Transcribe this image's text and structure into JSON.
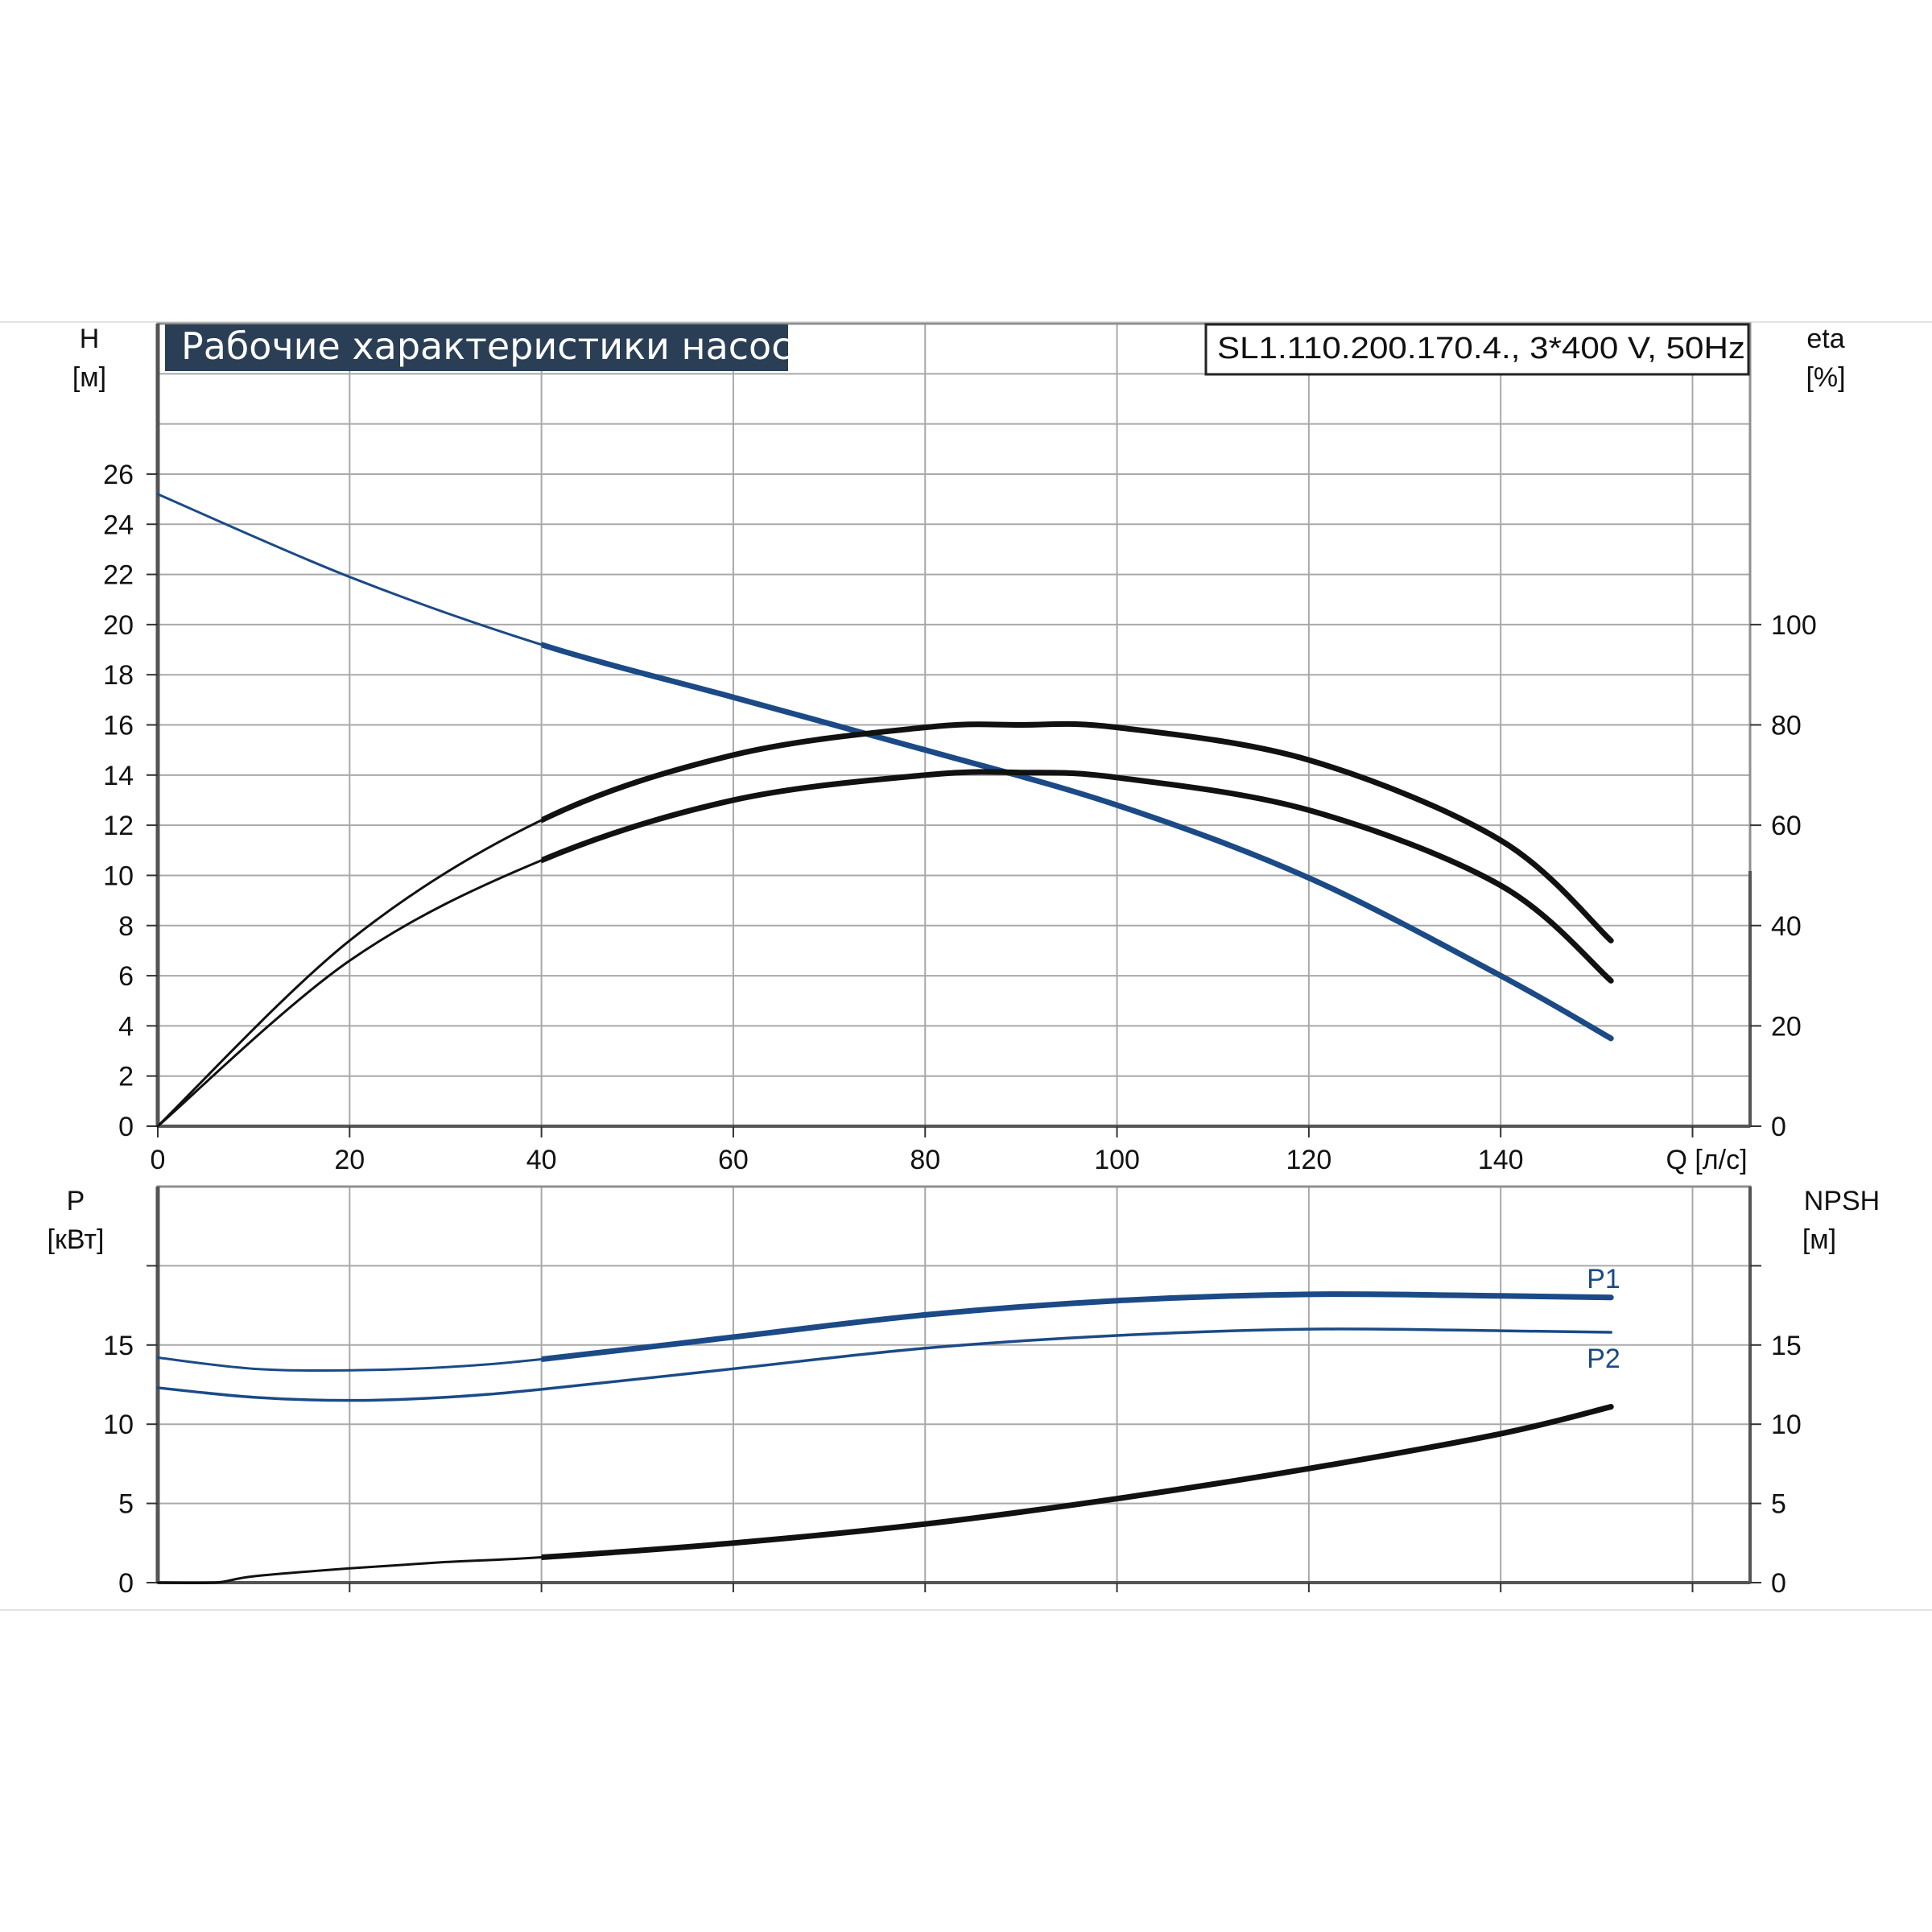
{
  "title": "Рабочие характеристики насоса",
  "model": "SL1.110.200.170.4., 3*400 V, 50Hz",
  "colors": {
    "blue": "#1b4a86",
    "black": "#111111",
    "grid": "#a9a9a9",
    "title_bg": "#2a3e55"
  },
  "chart_data": [
    {
      "type": "line",
      "x_label": "Q [л/с]",
      "left_axis": {
        "title_line1": "H",
        "title_line2": "[м]",
        "ticks": [
          "0",
          "2",
          "4",
          "6",
          "8",
          "10",
          "12",
          "14",
          "16",
          "18",
          "20",
          "22",
          "24",
          "26"
        ],
        "range": [
          0,
          32
        ]
      },
      "right_axis": {
        "title_line1": "eta",
        "title_line2": "[%]",
        "ticks": [
          "0",
          "20",
          "40",
          "60",
          "80",
          "100"
        ],
        "range": [
          0,
          160
        ]
      },
      "x_ticks": [
        "0",
        "20",
        "40",
        "60",
        "80",
        "100",
        "120",
        "140"
      ],
      "x_range": [
        0,
        166
      ],
      "grid": true,
      "series": [
        {
          "name": "",
          "axis": "left",
          "color": "blue",
          "x": [
            0,
            20,
            40,
            60,
            80,
            100,
            120,
            140,
            151.5
          ],
          "y": [
            25.2,
            21.9,
            19.2,
            17.1,
            15.0,
            12.8,
            9.9,
            6.0,
            3.5
          ]
        },
        {
          "name": "",
          "axis": "right",
          "color": "black",
          "x": [
            0,
            20,
            40,
            60,
            80,
            90,
            100,
            120,
            140,
            151.5
          ],
          "y": [
            0,
            37,
            61,
            74,
            79.5,
            80,
            79.5,
            73,
            57,
            37
          ]
        },
        {
          "name": "",
          "axis": "right",
          "color": "black",
          "x": [
            0,
            20,
            40,
            60,
            80,
            90,
            100,
            120,
            140,
            151.5
          ],
          "y": [
            0,
            33,
            53,
            65,
            70,
            70.5,
            69.5,
            63,
            48,
            29
          ]
        }
      ]
    },
    {
      "type": "line",
      "x_label": "",
      "left_axis": {
        "title_line1": "P",
        "title_line2": "[кВт]",
        "ticks": [
          "0",
          "5",
          "10",
          "15"
        ],
        "range": [
          0,
          25
        ]
      },
      "right_axis": {
        "title_line1": "NPSH",
        "title_line2": "[м]",
        "ticks": [
          "0",
          "5",
          "10",
          "15"
        ],
        "range": [
          0,
          25
        ]
      },
      "x_ticks": [],
      "x_range": [
        0,
        166
      ],
      "grid": true,
      "series": [
        {
          "name": "P1",
          "axis": "left",
          "color": "blue",
          "x": [
            0,
            10,
            20,
            30,
            40,
            60,
            80,
            100,
            120,
            140,
            151.5
          ],
          "y": [
            14.2,
            13.5,
            13.4,
            13.6,
            14.1,
            15.5,
            16.9,
            17.8,
            18.2,
            18.1,
            18.0
          ]
        },
        {
          "name": "P2",
          "axis": "left",
          "color": "blue",
          "x": [
            0,
            10,
            20,
            30,
            40,
            60,
            80,
            100,
            120,
            140,
            151.5
          ],
          "y": [
            12.3,
            11.7,
            11.5,
            11.7,
            12.2,
            13.5,
            14.8,
            15.6,
            16.0,
            15.9,
            15.8
          ]
        },
        {
          "name": "",
          "axis": "right",
          "color": "black",
          "x": [
            0,
            6,
            10,
            20,
            30,
            40,
            60,
            80,
            100,
            120,
            140,
            151.5
          ],
          "y": [
            0,
            0,
            0.4,
            0.9,
            1.3,
            1.6,
            2.5,
            3.7,
            5.3,
            7.2,
            9.4,
            11.1
          ]
        }
      ]
    }
  ]
}
